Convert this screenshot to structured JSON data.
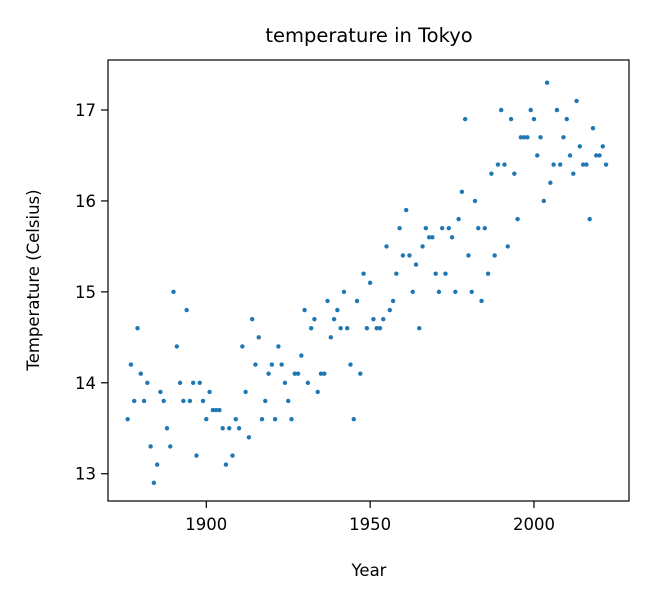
{
  "chart_data": {
    "type": "scatter",
    "title": "temperature in Tokyo",
    "xlabel": "Year",
    "ylabel": "Temperature (Celsius)",
    "xlim": [
      1870,
      2029
    ],
    "ylim": [
      12.7,
      17.55
    ],
    "x_ticks": [
      1900,
      1950,
      2000
    ],
    "y_ticks": [
      13,
      14,
      15,
      16,
      17
    ],
    "grid": false,
    "series": [
      {
        "color": "#1f77b4",
        "points": [
          [
            1876,
            13.6
          ],
          [
            1877,
            14.2
          ],
          [
            1878,
            13.8
          ],
          [
            1879,
            14.6
          ],
          [
            1880,
            14.1
          ],
          [
            1881,
            13.8
          ],
          [
            1882,
            14.0
          ],
          [
            1883,
            13.3
          ],
          [
            1884,
            12.9
          ],
          [
            1885,
            13.1
          ],
          [
            1886,
            13.9
          ],
          [
            1887,
            13.8
          ],
          [
            1888,
            13.5
          ],
          [
            1889,
            13.3
          ],
          [
            1890,
            15.0
          ],
          [
            1891,
            14.4
          ],
          [
            1892,
            14.0
          ],
          [
            1893,
            13.8
          ],
          [
            1894,
            14.8
          ],
          [
            1895,
            13.8
          ],
          [
            1896,
            14.0
          ],
          [
            1897,
            13.2
          ],
          [
            1898,
            14.0
          ],
          [
            1899,
            13.8
          ],
          [
            1900,
            13.6
          ],
          [
            1901,
            13.9
          ],
          [
            1902,
            13.7
          ],
          [
            1903,
            13.7
          ],
          [
            1904,
            13.7
          ],
          [
            1905,
            13.5
          ],
          [
            1906,
            13.1
          ],
          [
            1907,
            13.5
          ],
          [
            1908,
            13.2
          ],
          [
            1909,
            13.6
          ],
          [
            1910,
            13.5
          ],
          [
            1911,
            14.4
          ],
          [
            1912,
            13.9
          ],
          [
            1913,
            13.4
          ],
          [
            1914,
            14.7
          ],
          [
            1915,
            14.2
          ],
          [
            1916,
            14.5
          ],
          [
            1917,
            13.6
          ],
          [
            1918,
            13.8
          ],
          [
            1919,
            14.1
          ],
          [
            1920,
            14.2
          ],
          [
            1921,
            13.6
          ],
          [
            1922,
            14.4
          ],
          [
            1923,
            14.2
          ],
          [
            1924,
            14.0
          ],
          [
            1925,
            13.8
          ],
          [
            1926,
            13.6
          ],
          [
            1927,
            14.1
          ],
          [
            1928,
            14.1
          ],
          [
            1929,
            14.3
          ],
          [
            1930,
            14.8
          ],
          [
            1931,
            14.0
          ],
          [
            1932,
            14.6
          ],
          [
            1933,
            14.7
          ],
          [
            1934,
            13.9
          ],
          [
            1935,
            14.1
          ],
          [
            1936,
            14.1
          ],
          [
            1937,
            14.9
          ],
          [
            1938,
            14.5
          ],
          [
            1939,
            14.7
          ],
          [
            1940,
            14.8
          ],
          [
            1941,
            14.6
          ],
          [
            1942,
            15.0
          ],
          [
            1943,
            14.6
          ],
          [
            1944,
            14.2
          ],
          [
            1945,
            13.6
          ],
          [
            1946,
            14.9
          ],
          [
            1947,
            14.1
          ],
          [
            1948,
            15.2
          ],
          [
            1949,
            14.6
          ],
          [
            1950,
            15.1
          ],
          [
            1951,
            14.7
          ],
          [
            1952,
            14.6
          ],
          [
            1953,
            14.6
          ],
          [
            1954,
            14.7
          ],
          [
            1955,
            15.5
          ],
          [
            1956,
            14.8
          ],
          [
            1957,
            14.9
          ],
          [
            1958,
            15.2
          ],
          [
            1959,
            15.7
          ],
          [
            1960,
            15.4
          ],
          [
            1961,
            15.9
          ],
          [
            1962,
            15.4
          ],
          [
            1963,
            15.0
          ],
          [
            1964,
            15.3
          ],
          [
            1965,
            14.6
          ],
          [
            1966,
            15.5
          ],
          [
            1967,
            15.7
          ],
          [
            1968,
            15.6
          ],
          [
            1969,
            15.6
          ],
          [
            1970,
            15.2
          ],
          [
            1971,
            15.0
          ],
          [
            1972,
            15.7
          ],
          [
            1973,
            15.2
          ],
          [
            1974,
            15.7
          ],
          [
            1975,
            15.6
          ],
          [
            1976,
            15.0
          ],
          [
            1977,
            15.8
          ],
          [
            1978,
            16.1
          ],
          [
            1979,
            16.9
          ],
          [
            1980,
            15.4
          ],
          [
            1981,
            15.0
          ],
          [
            1982,
            16.0
          ],
          [
            1983,
            15.7
          ],
          [
            1984,
            14.9
          ],
          [
            1985,
            15.7
          ],
          [
            1986,
            15.2
          ],
          [
            1987,
            16.3
          ],
          [
            1988,
            15.4
          ],
          [
            1989,
            16.4
          ],
          [
            1990,
            17.0
          ],
          [
            1991,
            16.4
          ],
          [
            1992,
            15.5
          ],
          [
            1993,
            16.9
          ],
          [
            1994,
            16.3
          ],
          [
            1995,
            15.8
          ],
          [
            1996,
            16.7
          ],
          [
            1997,
            16.7
          ],
          [
            1998,
            16.7
          ],
          [
            1999,
            17.0
          ],
          [
            2000,
            16.9
          ],
          [
            2001,
            16.5
          ],
          [
            2002,
            16.7
          ],
          [
            2003,
            16.0
          ],
          [
            2004,
            17.3
          ],
          [
            2005,
            16.2
          ],
          [
            2006,
            16.4
          ],
          [
            2007,
            17.0
          ],
          [
            2008,
            16.4
          ],
          [
            2009,
            16.7
          ],
          [
            2010,
            16.9
          ],
          [
            2011,
            16.5
          ],
          [
            2012,
            16.3
          ],
          [
            2013,
            17.1
          ],
          [
            2014,
            16.6
          ],
          [
            2015,
            16.4
          ],
          [
            2016,
            16.4
          ],
          [
            2017,
            15.8
          ],
          [
            2018,
            16.8
          ],
          [
            2019,
            16.5
          ],
          [
            2020,
            16.5
          ],
          [
            2021,
            16.6
          ],
          [
            2022,
            16.4
          ]
        ]
      }
    ]
  }
}
